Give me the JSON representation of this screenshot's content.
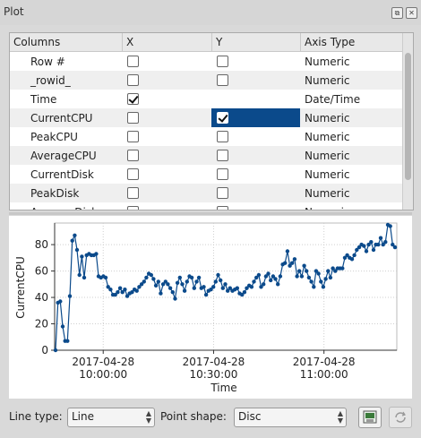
{
  "window": {
    "title": "Plot"
  },
  "table": {
    "headers": [
      "Columns",
      "X",
      "Y",
      "Axis Type"
    ],
    "rows": [
      {
        "name": "Row #",
        "x": false,
        "y": false,
        "axis": "Numeric"
      },
      {
        "name": "_rowid_",
        "x": false,
        "y": false,
        "axis": "Numeric"
      },
      {
        "name": "Time",
        "x": true,
        "y": null,
        "axis": "Date/Time"
      },
      {
        "name": "CurrentCPU",
        "x": false,
        "y": true,
        "axis": "Numeric"
      },
      {
        "name": "PeakCPU",
        "x": false,
        "y": false,
        "axis": "Numeric"
      },
      {
        "name": "AverageCPU",
        "x": false,
        "y": false,
        "axis": "Numeric"
      },
      {
        "name": "CurrentDisk",
        "x": false,
        "y": false,
        "axis": "Numeric"
      },
      {
        "name": "PeakDisk",
        "x": false,
        "y": false,
        "axis": "Numeric"
      },
      {
        "name": "AverageDisk",
        "x": false,
        "y": false,
        "axis": "Numeric"
      }
    ]
  },
  "chart_data": {
    "type": "line",
    "ylabel": "CurrentCPU",
    "xlabel": "Time",
    "ylim": [
      0,
      95
    ],
    "yticks": [
      0,
      20,
      40,
      60,
      80
    ],
    "xticks": [
      {
        "line1": "2017-04-28",
        "line2": "10:00:00",
        "t": 10.0
      },
      {
        "line1": "2017-04-28",
        "line2": "10:30:00",
        "t": 10.5
      },
      {
        "line1": "2017-04-28",
        "line2": "11:00:00",
        "t": 11.0
      }
    ],
    "xlim": [
      9.78,
      11.33
    ],
    "series": [
      {
        "color": "#0b4a8b",
        "values": [
          0,
          36,
          37,
          18,
          7,
          7,
          41,
          83,
          87,
          76,
          57,
          71,
          55,
          72,
          73,
          72,
          72,
          73,
          56,
          55,
          56,
          55,
          48,
          46,
          42,
          42,
          44,
          47,
          44,
          46,
          41,
          43,
          44,
          46,
          45,
          48,
          50,
          52,
          55,
          58,
          57,
          54,
          49,
          52,
          43,
          50,
          52,
          50,
          47,
          44,
          39,
          51,
          55,
          50,
          45,
          52,
          56,
          55,
          47,
          52,
          55,
          47,
          48,
          42,
          45,
          46,
          48,
          52,
          57,
          53,
          47,
          50,
          45,
          47,
          45,
          46,
          47,
          43,
          42,
          44,
          47,
          49,
          48,
          52,
          55,
          57,
          48,
          50,
          56,
          58,
          53,
          56,
          54,
          50,
          56,
          65,
          66,
          75,
          64,
          66,
          69,
          56,
          60,
          56,
          64,
          60,
          55,
          52,
          48,
          60,
          58,
          52,
          48,
          54,
          60,
          55,
          62,
          60,
          62,
          62,
          62,
          70,
          72,
          70,
          69,
          72,
          76,
          78,
          80,
          79,
          75,
          80,
          82,
          76,
          80,
          80,
          85,
          80,
          82,
          95,
          94,
          80,
          78
        ]
      }
    ]
  },
  "controls": {
    "line_type_label": "Line type:",
    "line_type_value": "Line",
    "point_shape_label": "Point shape:",
    "point_shape_value": "Disc"
  }
}
